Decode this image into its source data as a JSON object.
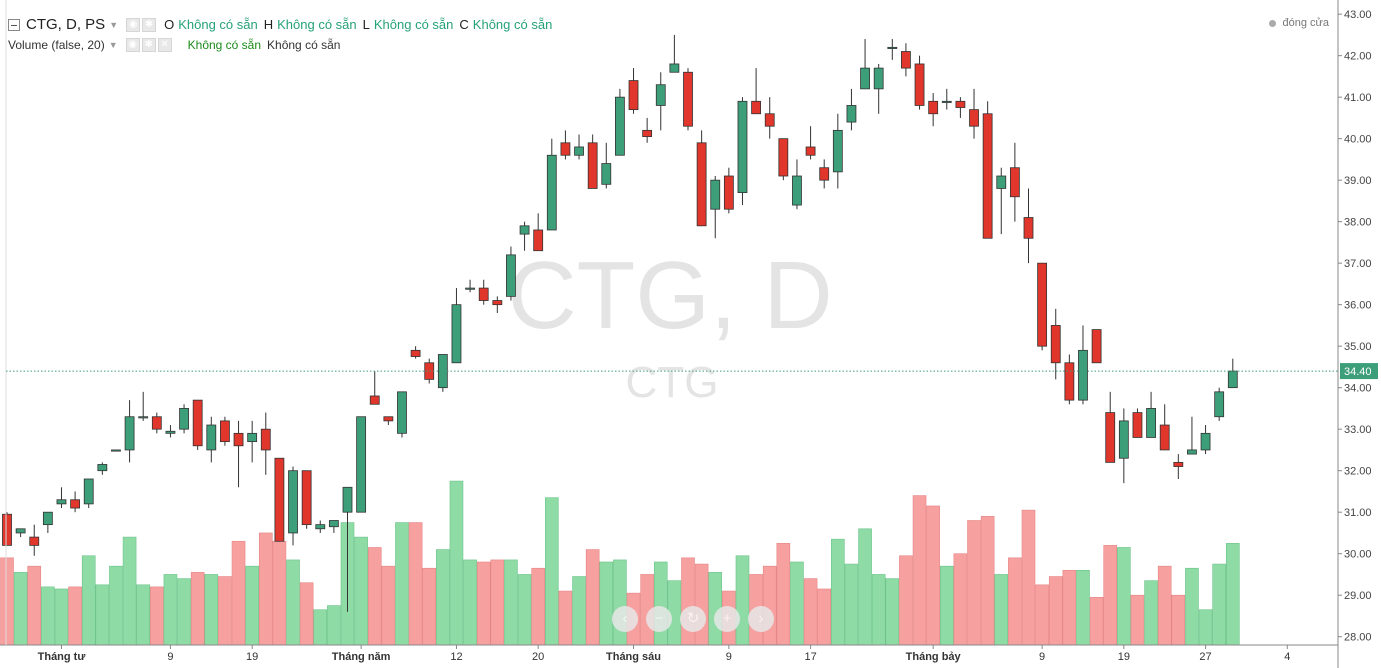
{
  "legend": {
    "symbol_title": "CTG, D, PS",
    "ohlc": [
      {
        "key": "O",
        "value": "Không có sẵn"
      },
      {
        "key": "H",
        "value": "Không có sẵn"
      },
      {
        "key": "L",
        "value": "Không có sẵn"
      },
      {
        "key": "C",
        "value": "Không có sẵn"
      }
    ],
    "volume_title": "Volume (false, 20)",
    "volume_values": [
      "Không có sẵn",
      "Không có sẵn"
    ]
  },
  "close_label": "đóng cửa",
  "watermark": {
    "main": "CTG, D",
    "sub": "CTG"
  },
  "colors": {
    "up": "#3d9e7a",
    "down": "#e0362c",
    "vol_up": "#8fdba6",
    "vol_down": "#f7a0a0",
    "last_price": "#3d9e7a"
  },
  "icons": [
    "eye-icon",
    "gear-icon",
    "close-icon",
    "chevron-left-icon",
    "minus-icon",
    "reset-icon",
    "plus-icon",
    "chevron-right-icon"
  ],
  "chart_data": {
    "type": "candlestick",
    "y_axis": {
      "min": 27.8,
      "max": 43.1,
      "ticks": [
        "28.00",
        "29.00",
        "30.00",
        "31.00",
        "32.00",
        "33.00",
        "34.00",
        "35.00",
        "36.00",
        "37.00",
        "38.00",
        "39.00",
        "40.00",
        "41.00",
        "42.00",
        "43.00"
      ]
    },
    "last_price": 34.4,
    "last_price_label": "34.40",
    "x_labels": [
      {
        "label": "Tháng tư",
        "index": 4,
        "bold": true
      },
      {
        "label": "9",
        "index": 12,
        "bold": false
      },
      {
        "label": "19",
        "index": 18,
        "bold": false
      },
      {
        "label": "Tháng năm",
        "index": 26,
        "bold": true
      },
      {
        "label": "12",
        "index": 33,
        "bold": false
      },
      {
        "label": "20",
        "index": 39,
        "bold": false
      },
      {
        "label": "Tháng sáu",
        "index": 46,
        "bold": true
      },
      {
        "label": "9",
        "index": 53,
        "bold": false
      },
      {
        "label": "17",
        "index": 59,
        "bold": false
      },
      {
        "label": "Tháng bảy",
        "index": 68,
        "bold": true
      },
      {
        "label": "9",
        "index": 76,
        "bold": false
      },
      {
        "label": "19",
        "index": 82,
        "bold": false
      },
      {
        "label": "27",
        "index": 88,
        "bold": false
      },
      {
        "label": "4",
        "index": 94,
        "bold": false
      }
    ],
    "candles": [
      [
        30.95,
        31.0,
        30.2,
        30.2,
        29.9
      ],
      [
        30.5,
        30.6,
        30.4,
        30.6,
        29.55
      ],
      [
        30.4,
        30.7,
        29.95,
        30.2,
        29.7
      ],
      [
        30.7,
        31.0,
        30.5,
        31.0,
        29.2
      ],
      [
        31.2,
        31.6,
        31.1,
        31.3,
        29.15
      ],
      [
        31.3,
        31.5,
        31.0,
        31.1,
        29.2
      ],
      [
        31.2,
        31.8,
        31.1,
        31.8,
        29.95
      ],
      [
        32.0,
        32.2,
        31.9,
        32.15,
        29.25
      ],
      [
        32.5,
        32.5,
        32.5,
        32.5,
        29.7
      ],
      [
        32.5,
        33.7,
        32.2,
        33.3,
        30.4
      ],
      [
        33.3,
        33.9,
        33.2,
        33.3,
        29.25
      ],
      [
        33.3,
        33.4,
        32.9,
        33.0,
        29.2
      ],
      [
        32.9,
        33.1,
        32.8,
        32.95,
        29.5
      ],
      [
        33.0,
        33.6,
        32.9,
        33.5,
        29.4
      ],
      [
        33.7,
        33.7,
        32.5,
        32.6,
        29.55
      ],
      [
        32.5,
        33.3,
        32.2,
        33.1,
        29.5
      ],
      [
        33.2,
        33.3,
        32.6,
        32.7,
        29.45
      ],
      [
        32.9,
        33.2,
        31.6,
        32.6,
        30.3
      ],
      [
        32.7,
        33.2,
        32.2,
        32.9,
        29.7
      ],
      [
        33.0,
        33.4,
        31.9,
        32.5,
        30.5
      ],
      [
        32.3,
        32.3,
        30.3,
        30.3,
        30.3
      ],
      [
        30.5,
        32.1,
        30.2,
        32.0,
        29.85
      ],
      [
        32.0,
        32.0,
        30.6,
        30.7,
        29.3
      ],
      [
        30.6,
        30.8,
        30.5,
        30.7,
        28.65
      ],
      [
        30.65,
        30.8,
        30.5,
        30.8,
        28.75
      ],
      [
        31.0,
        31.6,
        28.6,
        31.6,
        30.75
      ],
      [
        31.0,
        33.3,
        31.0,
        33.3,
        30.4
      ],
      [
        33.8,
        34.4,
        33.7,
        33.6,
        30.15
      ],
      [
        33.3,
        33.3,
        33.1,
        33.2,
        29.7
      ],
      [
        32.9,
        33.9,
        32.8,
        33.9,
        30.75
      ],
      [
        34.9,
        35.0,
        34.7,
        34.75,
        30.75
      ],
      [
        34.6,
        34.7,
        34.1,
        34.2,
        29.65
      ],
      [
        34.0,
        34.8,
        33.9,
        34.8,
        30.1
      ],
      [
        34.6,
        36.4,
        34.6,
        36.0,
        31.75
      ],
      [
        36.4,
        36.6,
        36.3,
        36.4,
        29.85
      ],
      [
        36.4,
        36.6,
        36.0,
        36.1,
        29.8
      ],
      [
        36.1,
        36.2,
        35.8,
        36.0,
        29.85
      ],
      [
        36.2,
        37.4,
        36.1,
        37.2,
        29.85
      ],
      [
        37.7,
        38.0,
        37.3,
        37.9,
        29.5
      ],
      [
        37.8,
        38.2,
        37.3,
        37.3,
        29.65
      ],
      [
        37.8,
        40.0,
        37.8,
        39.6,
        31.35
      ],
      [
        39.9,
        40.2,
        39.5,
        39.6,
        29.1
      ],
      [
        39.6,
        40.1,
        39.5,
        39.8,
        29.45
      ],
      [
        39.9,
        40.1,
        38.8,
        38.8,
        30.1
      ],
      [
        38.9,
        39.9,
        38.8,
        39.4,
        29.8
      ],
      [
        39.6,
        41.2,
        39.6,
        41.0,
        29.85
      ],
      [
        41.4,
        41.7,
        40.6,
        40.7,
        29.05
      ],
      [
        40.2,
        40.5,
        39.9,
        40.05,
        29.5
      ],
      [
        40.8,
        41.6,
        40.2,
        41.3,
        29.8
      ],
      [
        41.6,
        42.5,
        41.6,
        41.8,
        29.35
      ],
      [
        41.6,
        41.7,
        40.2,
        40.3,
        29.9
      ],
      [
        39.9,
        40.2,
        37.9,
        37.9,
        29.75
      ],
      [
        38.3,
        39.1,
        37.6,
        39.0,
        29.55
      ],
      [
        39.1,
        39.3,
        38.2,
        38.3,
        29.1
      ],
      [
        38.7,
        41.0,
        38.4,
        40.9,
        29.95
      ],
      [
        40.9,
        41.7,
        40.6,
        40.6,
        29.5
      ],
      [
        40.6,
        41.0,
        40.0,
        40.3,
        29.7
      ],
      [
        40.0,
        40.0,
        39.0,
        39.1,
        30.25
      ],
      [
        38.4,
        39.5,
        38.3,
        39.1,
        29.8
      ],
      [
        39.8,
        40.3,
        39.5,
        39.6,
        29.4
      ],
      [
        39.3,
        39.5,
        38.8,
        39.0,
        29.15
      ],
      [
        39.2,
        40.6,
        38.8,
        40.2,
        30.35
      ],
      [
        40.4,
        41.2,
        40.2,
        40.8,
        29.75
      ],
      [
        41.2,
        42.4,
        41.2,
        41.7,
        30.6
      ],
      [
        41.2,
        41.8,
        40.6,
        41.7,
        29.5
      ],
      [
        42.2,
        42.4,
        41.9,
        42.2,
        29.4
      ],
      [
        42.1,
        42.3,
        41.5,
        41.7,
        29.95
      ],
      [
        41.8,
        42.0,
        40.7,
        40.8,
        31.4
      ],
      [
        40.9,
        41.1,
        40.3,
        40.6,
        31.15
      ],
      [
        40.9,
        41.2,
        40.7,
        40.9,
        29.7
      ],
      [
        40.9,
        41.0,
        40.5,
        40.75,
        30.0
      ],
      [
        40.7,
        41.2,
        40.0,
        40.3,
        30.8
      ],
      [
        40.6,
        40.9,
        37.6,
        37.6,
        30.9
      ],
      [
        38.8,
        39.3,
        37.7,
        39.1,
        29.5
      ],
      [
        39.3,
        39.9,
        38.0,
        38.6,
        29.9
      ],
      [
        38.1,
        38.8,
        37.0,
        37.6,
        31.05
      ],
      [
        37.0,
        37.0,
        34.9,
        35.0,
        29.25
      ],
      [
        35.5,
        35.9,
        34.2,
        34.6,
        29.45
      ],
      [
        34.6,
        34.8,
        33.6,
        33.7,
        29.6
      ],
      [
        33.7,
        35.5,
        33.6,
        34.9,
        29.6
      ],
      [
        35.4,
        35.4,
        34.6,
        34.6,
        28.95
      ],
      [
        33.4,
        33.9,
        32.2,
        32.2,
        30.2
      ],
      [
        32.3,
        33.5,
        31.7,
        33.2,
        30.15
      ],
      [
        33.4,
        33.5,
        32.8,
        32.8,
        29.0
      ],
      [
        32.8,
        33.9,
        32.8,
        33.5,
        29.35
      ],
      [
        33.1,
        33.6,
        32.5,
        32.5,
        29.7
      ],
      [
        32.2,
        32.4,
        31.8,
        32.1,
        29.0
      ],
      [
        32.4,
        33.3,
        32.4,
        32.5,
        29.65
      ],
      [
        32.5,
        33.1,
        32.4,
        32.9,
        28.65
      ],
      [
        33.3,
        34.0,
        33.2,
        33.9,
        29.75
      ],
      [
        34.0,
        34.7,
        34.0,
        34.4,
        30.25
      ]
    ],
    "volume_scale": {
      "min": 27.8,
      "max": 31.8
    }
  }
}
